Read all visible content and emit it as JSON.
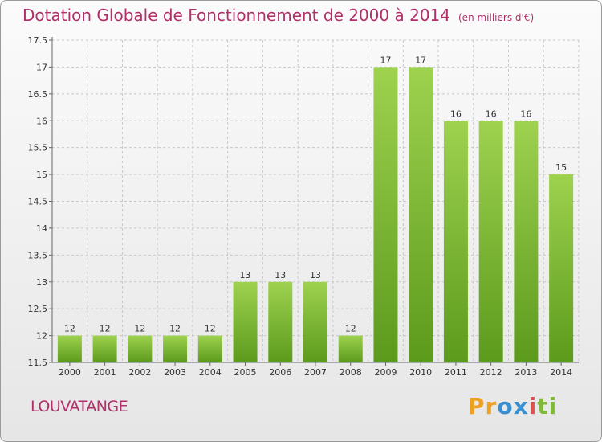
{
  "chart_data": {
    "type": "bar",
    "title": "Dotation Globale de Fonctionnement de 2000 à 2014",
    "unit": "(en milliers d'€)",
    "xlabel": "",
    "ylabel": "",
    "categories": [
      "2000",
      "2001",
      "2002",
      "2003",
      "2004",
      "2005",
      "2006",
      "2007",
      "2008",
      "2009",
      "2010",
      "2011",
      "2012",
      "2013",
      "2014"
    ],
    "values": [
      12,
      12,
      12,
      12,
      12,
      13,
      13,
      13,
      12,
      17,
      17,
      16,
      16,
      16,
      15
    ],
    "ylim": [
      11.5,
      17.5
    ],
    "yticks": [
      "11.5",
      "12",
      "12.5",
      "13",
      "13.5",
      "14",
      "14.5",
      "15",
      "15.5",
      "16",
      "16.5",
      "17",
      "17.5"
    ],
    "grid": true,
    "bar_color": "#7ab83a"
  },
  "commune": "LOUVATANGE",
  "brand": {
    "letters": [
      "P",
      "r",
      "o",
      "x",
      "i",
      "t",
      "i"
    ],
    "colors": [
      "#f0a020",
      "#f0a020",
      "#3a8fd0",
      "#3a8fd0",
      "#e05050",
      "#80b83a",
      "#80b83a"
    ]
  }
}
